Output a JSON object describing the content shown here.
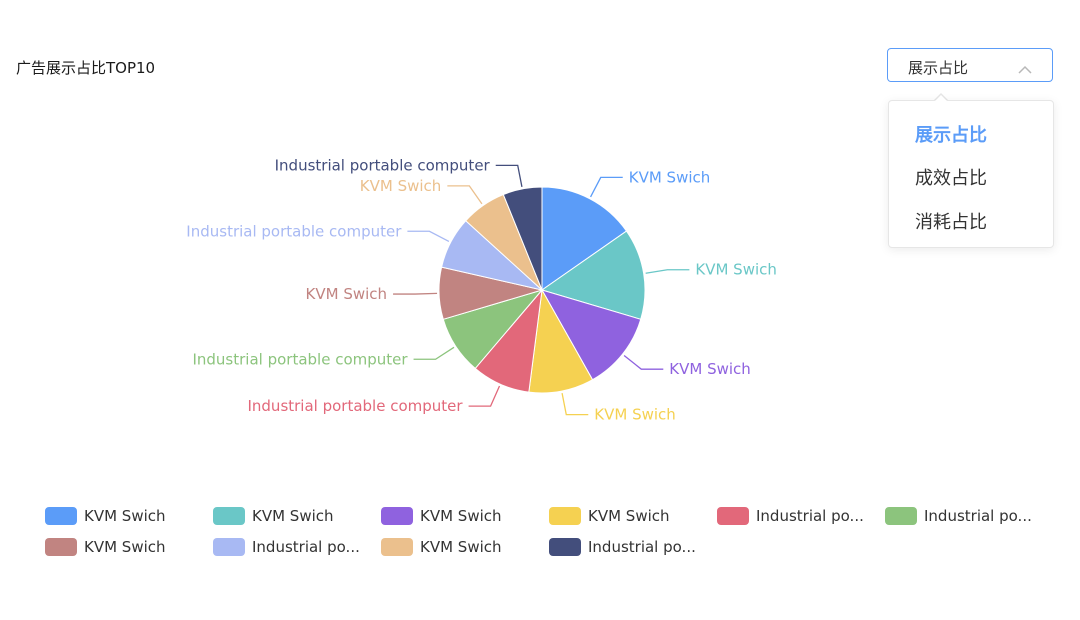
{
  "header": {
    "title": "广告展示占比TOP10"
  },
  "select": {
    "value": "展示占比",
    "options": [
      "展示占比",
      "成效占比",
      "消耗占比"
    ],
    "active_index": 0
  },
  "colors": {
    "accent": "#5b9cf8"
  },
  "chart_data": {
    "type": "pie",
    "title": "",
    "slices": [
      {
        "label": "KVM Swich",
        "legend_label": "KVM Swich",
        "value": 15,
        "color": "#5B9CF8"
      },
      {
        "label": "KVM Swich",
        "legend_label": "KVM Swich",
        "value": 14,
        "color": "#6AC7C7"
      },
      {
        "label": "KVM Swich",
        "legend_label": "KVM Swich",
        "value": 12,
        "color": "#8F62DF"
      },
      {
        "label": "KVM Swich",
        "legend_label": "KVM Swich",
        "value": 10,
        "color": "#F5D151"
      },
      {
        "label": "Industrial portable computer",
        "legend_label": "Industrial po...",
        "value": 9,
        "color": "#E2687A"
      },
      {
        "label": "Industrial portable computer",
        "legend_label": "Industrial po...",
        "value": 9,
        "color": "#8CC47D"
      },
      {
        "label": "KVM Swich",
        "legend_label": "KVM Swich",
        "value": 8,
        "color": "#C18481"
      },
      {
        "label": "Industrial portable computer",
        "legend_label": "Industrial po...",
        "value": 8,
        "color": "#A8B9F3"
      },
      {
        "label": "KVM Swich",
        "legend_label": "KVM Swich",
        "value": 7,
        "color": "#EBC08D"
      },
      {
        "label": "Industrial portable computer",
        "legend_label": "Industrial po...",
        "value": 6,
        "color": "#434E7C"
      }
    ],
    "legend": "bottom"
  }
}
